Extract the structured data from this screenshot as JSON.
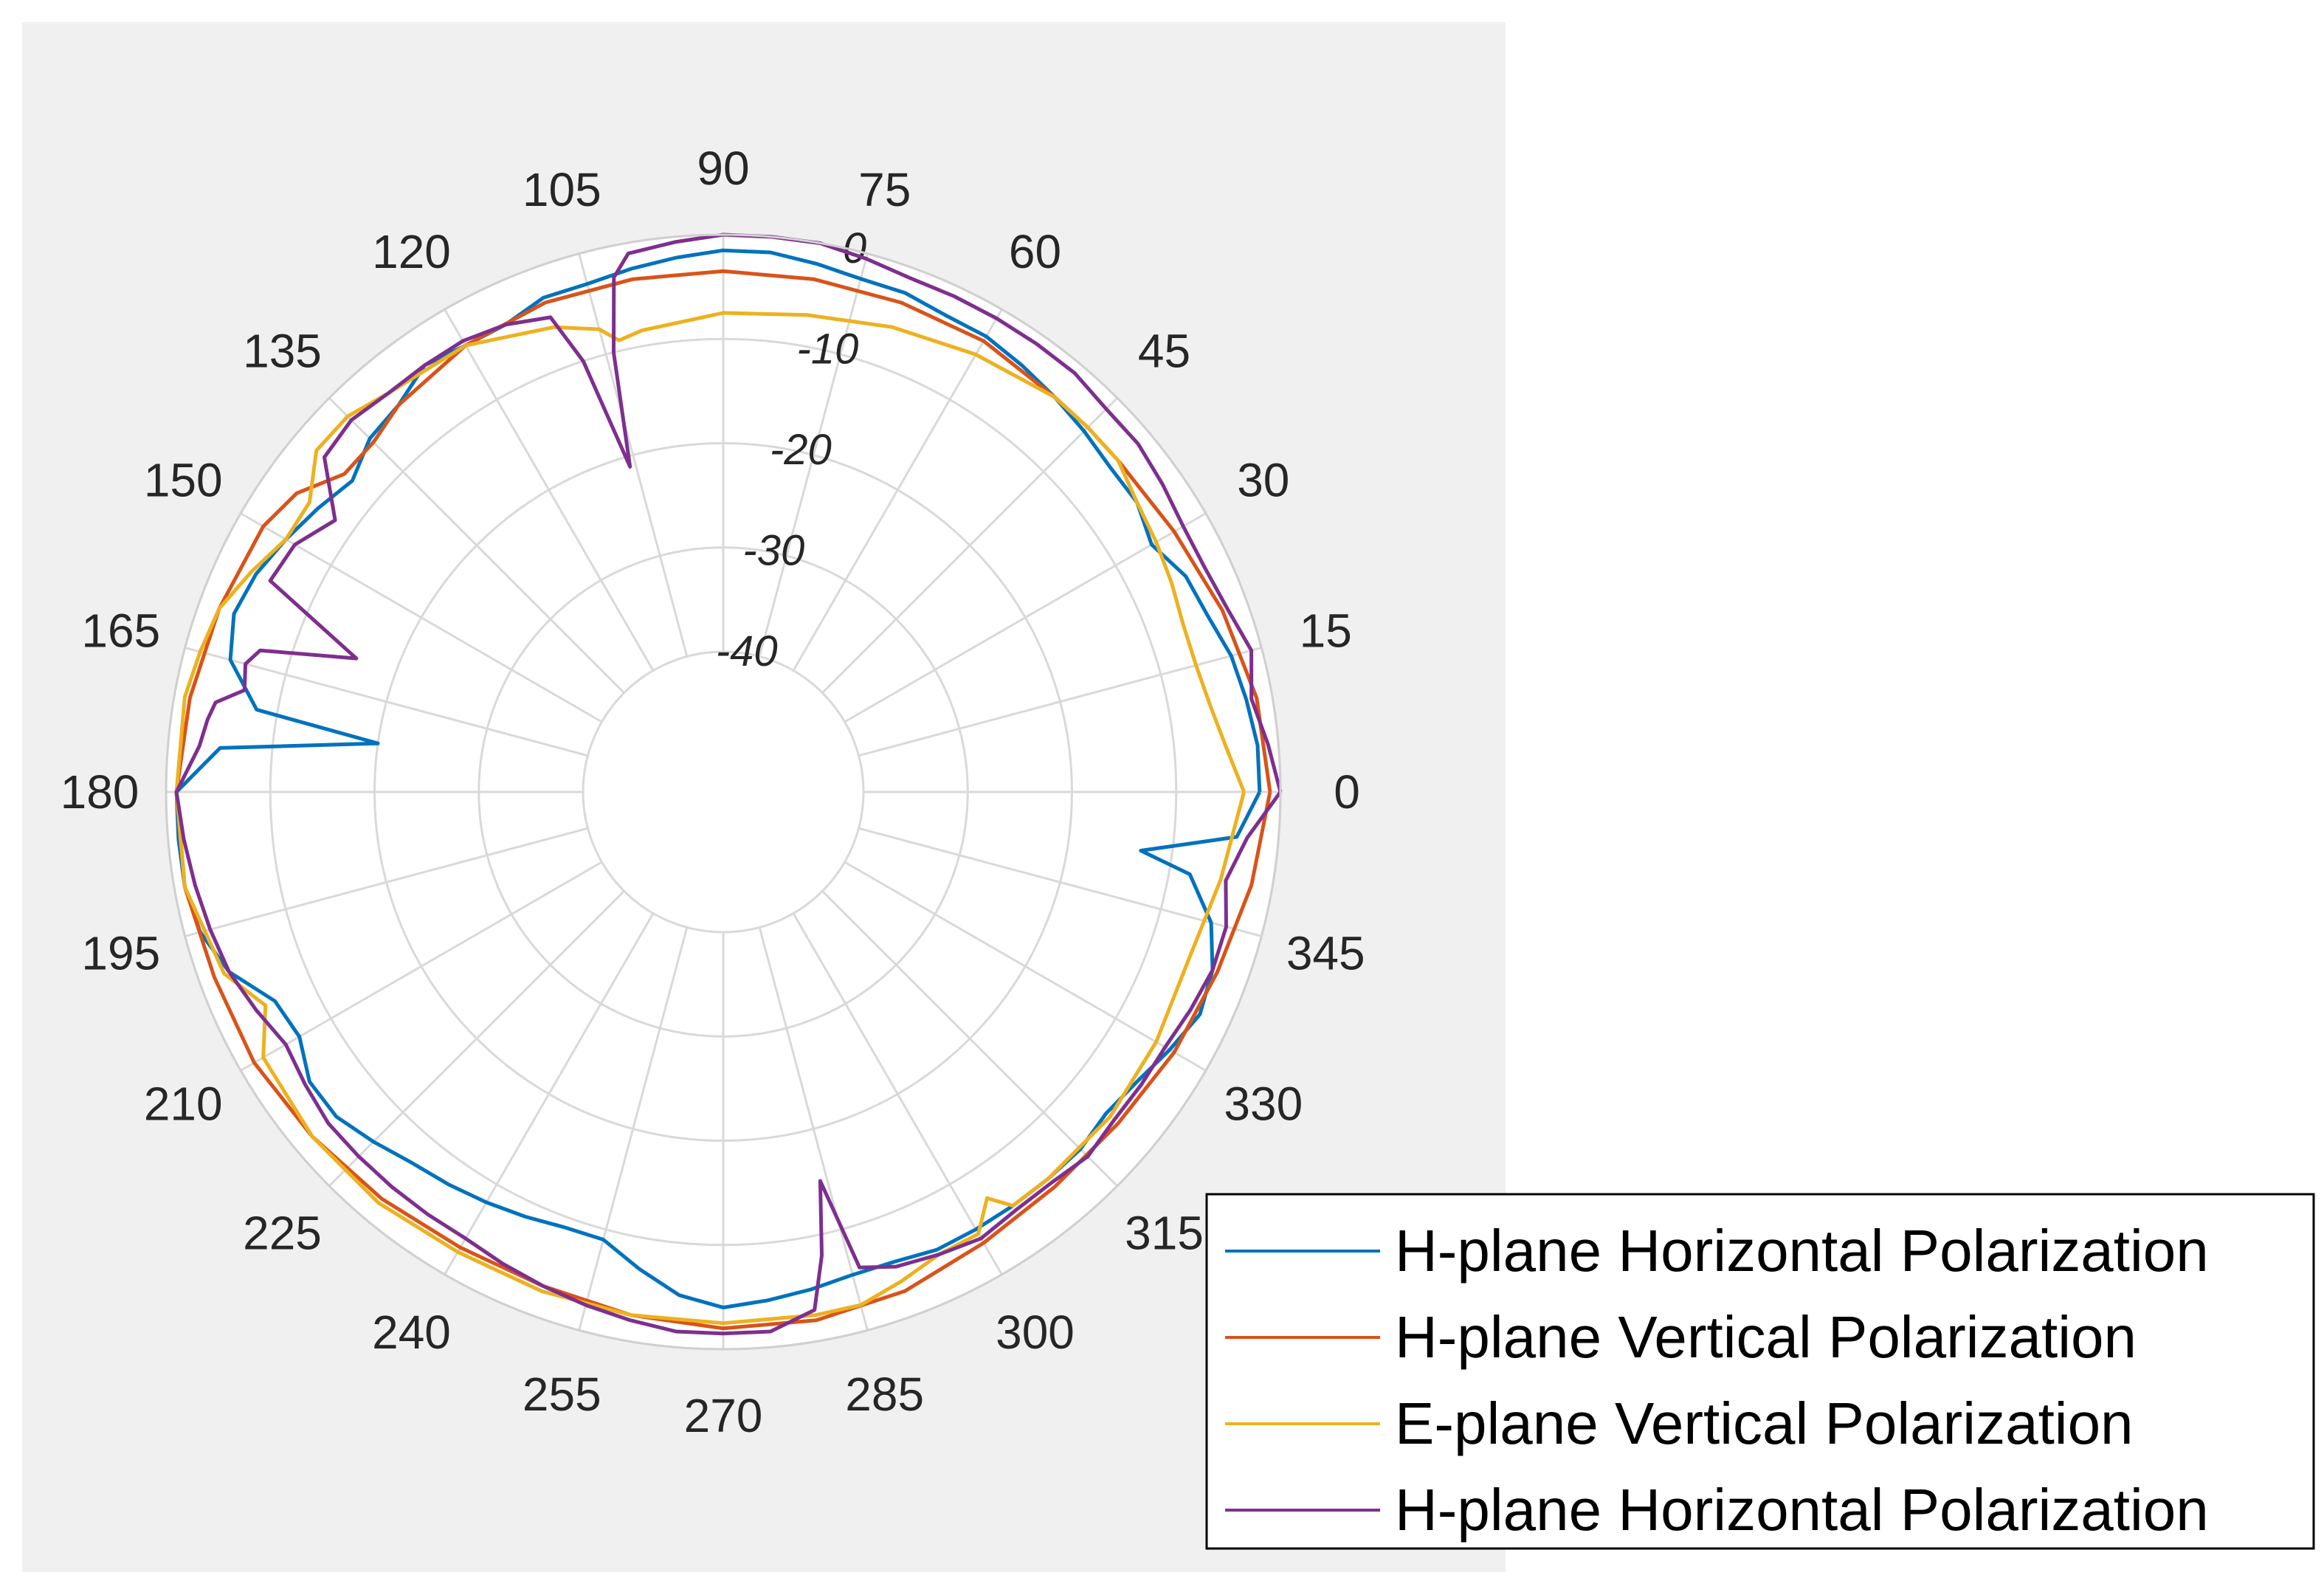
{
  "chart_data": {
    "type": "polar-line",
    "title": "",
    "angle_unit": "degrees",
    "theta_ticks": [
      0,
      15,
      30,
      45,
      60,
      75,
      90,
      105,
      120,
      135,
      150,
      165,
      180,
      195,
      210,
      225,
      240,
      255,
      270,
      285,
      300,
      315,
      330,
      345
    ],
    "theta_tick_labels": [
      "0",
      "15",
      "30",
      "45",
      "60",
      "75",
      "90",
      "105",
      "120",
      "135",
      "150",
      "165",
      "180",
      "195",
      "210",
      "225",
      "240",
      "255",
      "270",
      "285",
      "300",
      "315",
      "330",
      "345"
    ],
    "r_ticks": [
      -40,
      -30,
      -20,
      -10,
      0
    ],
    "r_tick_labels": [
      "-40",
      "-30",
      "-20",
      "-10",
      "0"
    ],
    "rlim": [
      -40,
      0
    ],
    "r_label_angle": 75,
    "legend_location": "bottom-right",
    "colors": {
      "figure_bg": "#f0f0f0",
      "axes_bg": "#ffffff",
      "grid": "#d9d9d9"
    },
    "series": [
      {
        "name": "H-plane Horizontal Polarization",
        "color": "#0072bd",
        "theta": [
          0,
          5,
          10,
          15,
          20,
          25,
          30,
          35,
          40,
          45,
          50,
          55,
          60,
          65,
          70,
          75,
          80,
          85,
          90,
          95,
          100,
          105,
          110,
          115,
          120,
          125,
          130,
          135,
          140,
          145,
          150,
          155,
          160,
          165,
          170,
          172,
          175,
          180,
          185,
          190,
          195,
          200,
          205,
          210,
          215,
          220,
          225,
          230,
          235,
          240,
          245,
          250,
          255,
          260,
          265,
          270,
          275,
          280,
          285,
          290,
          295,
          300,
          305,
          310,
          315,
          320,
          325,
          330,
          335,
          340,
          345,
          350,
          352,
          355,
          360
        ],
        "r": [
          -2,
          -2,
          -2.5,
          -3,
          -4,
          -4.5,
          -6,
          -5,
          -5,
          -4.5,
          -4,
          -3.5,
          -3,
          -3,
          -2.5,
          -2.5,
          -2,
          -1.5,
          -1.5,
          -2,
          -2.5,
          -3,
          -3,
          -4,
          -4,
          -3.5,
          -5,
          -5.5,
          -7,
          -6,
          -5,
          -4,
          -3.5,
          -4.5,
          -8,
          -20,
          -5,
          -1,
          -1,
          -1,
          -1.5,
          -3,
          -6,
          -6.5,
          -5,
          -5,
          -6,
          -7,
          -7.5,
          -8,
          -8.5,
          -9,
          -9,
          -7,
          -5,
          -4,
          -4.5,
          -5,
          -5.5,
          -5.5,
          -5,
          -5,
          -5,
          -5,
          -5,
          -5.5,
          -5,
          -4,
          -3,
          -3.5,
          -5,
          -8,
          -13,
          -4,
          -2
        ]
      },
      {
        "name": "H-plane Vertical Polarization",
        "color": "#d95319",
        "theta": [
          0,
          10,
          20,
          30,
          40,
          45,
          50,
          60,
          70,
          80,
          90,
          100,
          110,
          120,
          130,
          135,
          140,
          145,
          150,
          160,
          170,
          180,
          190,
          200,
          210,
          220,
          230,
          240,
          250,
          260,
          270,
          280,
          290,
          300,
          310,
          320,
          330,
          340,
          350,
          360
        ],
        "r": [
          -1,
          -1.5,
          -2.5,
          -3.5,
          -4,
          -4,
          -4,
          -3.5,
          -3.5,
          -3.5,
          -3.5,
          -3.5,
          -3.5,
          -4,
          -5,
          -6,
          -6,
          -3.5,
          -2.5,
          -2,
          -1.5,
          -1,
          -1,
          -1.5,
          -1.5,
          -2,
          -2.5,
          -3,
          -3,
          -2.5,
          -2,
          -2,
          -2.5,
          -3.5,
          -4,
          -4,
          -3.5,
          -3,
          -2,
          -1
        ]
      },
      {
        "name": "E-plane Vertical Polarization",
        "color": "#edb120",
        "theta": [
          0,
          5,
          10,
          15,
          20,
          25,
          30,
          35,
          40,
          45,
          50,
          60,
          70,
          80,
          90,
          100,
          103,
          105,
          110,
          120,
          130,
          135,
          140,
          145,
          150,
          155,
          160,
          165,
          170,
          180,
          190,
          200,
          205,
          210,
          220,
          230,
          240,
          250,
          260,
          270,
          280,
          285,
          290,
          295,
          300,
          303,
          305,
          310,
          320,
          330,
          340,
          350,
          360
        ],
        "r": [
          -3.5,
          -5,
          -6,
          -6.5,
          -6.5,
          -6,
          -5.5,
          -5,
          -4,
          -4,
          -4,
          -5,
          -6,
          -7,
          -7.5,
          -8.5,
          -9,
          -7.5,
          -6,
          -4,
          -3.5,
          -2.5,
          -2.5,
          -5,
          -5,
          -3.5,
          -2,
          -1.5,
          -1,
          -1,
          -1,
          -2.5,
          -5,
          -2.5,
          -2,
          -2,
          -2.5,
          -2.5,
          -2.5,
          -2.5,
          -2.5,
          -2.5,
          -3.5,
          -4.5,
          -4.5,
          -7,
          -5,
          -5,
          -5,
          -5.5,
          -6,
          -5,
          -3.5
        ]
      },
      {
        "name": "H-plane Horizontal Polarization",
        "color": "#7e2f8e",
        "theta": [
          0,
          5,
          10,
          15,
          20,
          25,
          30,
          35,
          40,
          45,
          50,
          55,
          60,
          65,
          70,
          75,
          80,
          85,
          90,
          95,
          100,
          102,
          104,
          106,
          108,
          110,
          115,
          120,
          125,
          130,
          135,
          140,
          145,
          150,
          155,
          160,
          163,
          165,
          168,
          170,
          172,
          175,
          180,
          185,
          190,
          195,
          200,
          205,
          210,
          215,
          220,
          225,
          230,
          235,
          240,
          245,
          250,
          255,
          260,
          265,
          270,
          275,
          280,
          282,
          284,
          286,
          290,
          295,
          300,
          305,
          310,
          315,
          320,
          325,
          330,
          335,
          340,
          345,
          350,
          355,
          360
        ],
        "r": [
          0,
          -1,
          -2,
          -1,
          -2,
          -2.5,
          -2.5,
          -2,
          -1.5,
          -1.5,
          -1,
          -1,
          -1,
          -1,
          -1,
          -0.5,
          0,
          0,
          0,
          -0.5,
          -1,
          -3,
          -10,
          -21,
          -10,
          -5,
          -4,
          -3.5,
          -3.5,
          -3.5,
          -3,
          -3.5,
          -8,
          -6,
          -5.5,
          -16,
          -7,
          -6,
          -6.5,
          -4,
          -3.5,
          -3,
          -1,
          -1.5,
          -2,
          -2.5,
          -3,
          -4,
          -5,
          -4.5,
          -4,
          -4,
          -4,
          -4,
          -4,
          -3.5,
          -3,
          -2.5,
          -2,
          -1.5,
          -1.5,
          -1.5,
          -3,
          -8,
          -15,
          -6,
          -5,
          -4.5,
          -4,
          -4.5,
          -4.5,
          -4,
          -4.5,
          -4.5,
          -4.5,
          -4,
          -3.5,
          -3.5,
          -4.5,
          -3,
          0
        ]
      }
    ]
  }
}
